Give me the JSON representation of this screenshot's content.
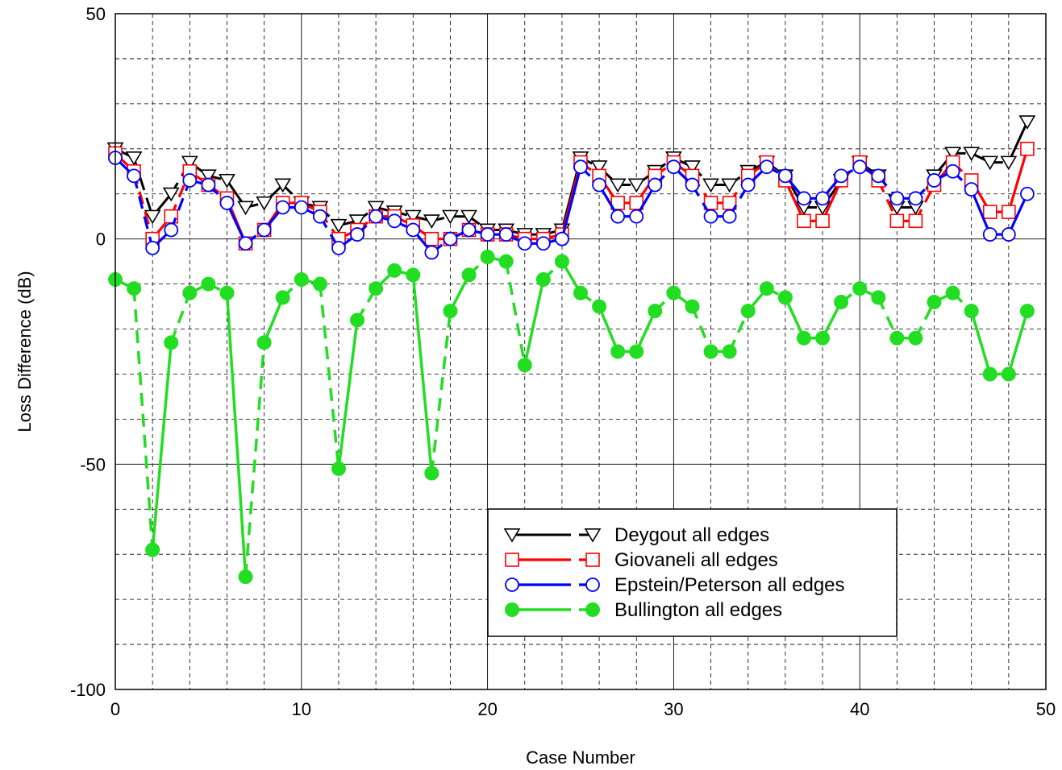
{
  "chart_data": {
    "type": "line",
    "title": "",
    "xlabel": "Case Number",
    "ylabel": "Loss Difference  (dB)",
    "xlim": [
      0,
      50
    ],
    "ylim": [
      -100,
      50
    ],
    "xticks": [
      0,
      10,
      20,
      30,
      40,
      50
    ],
    "yticks": [
      -100,
      -50,
      0,
      50
    ],
    "grid": true,
    "legend_position": "lower-right",
    "series": [
      {
        "name": "Deygout all edges",
        "color": "#000000",
        "marker": "triangle-down-open",
        "x": [
          0,
          1,
          2,
          3,
          4,
          5,
          6,
          7,
          8,
          9,
          10,
          11,
          12,
          13,
          14,
          15,
          16,
          17,
          18,
          19,
          20,
          21,
          22,
          23,
          24,
          25,
          26,
          27,
          28,
          29,
          30,
          31,
          32,
          33,
          34,
          35,
          36,
          37,
          38,
          39,
          40,
          41,
          42,
          43,
          44,
          45,
          46,
          47,
          48,
          49
        ],
        "values": [
          20,
          18,
          5,
          10,
          17,
          14,
          13,
          7,
          8,
          12,
          8,
          7,
          3,
          4,
          7,
          6,
          5,
          4,
          5,
          5,
          2,
          2,
          1,
          1,
          2,
          18,
          16,
          12,
          12,
          15,
          18,
          16,
          12,
          12,
          15,
          17,
          14,
          7,
          7,
          13,
          17,
          14,
          7,
          7,
          14,
          19,
          19,
          17,
          17,
          26
        ]
      },
      {
        "name": "Giovaneli all edges",
        "color": "#ff0000",
        "marker": "square-open",
        "x": [
          0,
          1,
          2,
          3,
          4,
          5,
          6,
          7,
          8,
          9,
          10,
          11,
          12,
          13,
          14,
          15,
          16,
          17,
          18,
          19,
          20,
          21,
          22,
          23,
          24,
          25,
          26,
          27,
          28,
          29,
          30,
          31,
          32,
          33,
          34,
          35,
          36,
          37,
          38,
          39,
          40,
          41,
          42,
          43,
          44,
          45,
          46,
          47,
          48,
          49
        ],
        "values": [
          19,
          15,
          0,
          5,
          15,
          12,
          9,
          -1,
          2,
          8,
          8,
          6,
          0,
          2,
          5,
          5,
          3,
          0,
          0,
          2,
          1,
          1,
          0,
          0,
          1,
          17,
          14,
          8,
          8,
          14,
          17,
          14,
          8,
          8,
          14,
          17,
          13,
          4,
          4,
          13,
          17,
          13,
          4,
          4,
          12,
          17,
          13,
          6,
          6,
          20
        ]
      },
      {
        "name": "Epstein/Peterson all edges",
        "color": "#0000ff",
        "marker": "circle-open",
        "x": [
          0,
          1,
          2,
          3,
          4,
          5,
          6,
          7,
          8,
          9,
          10,
          11,
          12,
          13,
          14,
          15,
          16,
          17,
          18,
          19,
          20,
          21,
          22,
          23,
          24,
          25,
          26,
          27,
          28,
          29,
          30,
          31,
          32,
          33,
          34,
          35,
          36,
          37,
          38,
          39,
          40,
          41,
          42,
          43,
          44,
          45,
          46,
          47,
          48,
          49
        ],
        "values": [
          18,
          14,
          -2,
          2,
          13,
          12,
          8,
          -1,
          2,
          7,
          7,
          5,
          -2,
          1,
          5,
          4,
          2,
          -3,
          0,
          2,
          1,
          1,
          -1,
          -1,
          0,
          16,
          12,
          5,
          5,
          12,
          16,
          12,
          5,
          5,
          12,
          16,
          14,
          9,
          9,
          14,
          16,
          14,
          9,
          9,
          13,
          15,
          11,
          1,
          1,
          10
        ]
      },
      {
        "name": "Bullington all edges",
        "color": "#22dd22",
        "marker": "circle-filled",
        "x": [
          0,
          1,
          2,
          3,
          4,
          5,
          6,
          7,
          8,
          9,
          10,
          11,
          12,
          13,
          14,
          15,
          16,
          17,
          18,
          19,
          20,
          21,
          22,
          23,
          24,
          25,
          26,
          27,
          28,
          29,
          30,
          31,
          32,
          33,
          34,
          35,
          36,
          37,
          38,
          39,
          40,
          41,
          42,
          43,
          44,
          45,
          46,
          47,
          48,
          49
        ],
        "values": [
          -9,
          -11,
          -69,
          -23,
          -12,
          -10,
          -12,
          -75,
          -23,
          -13,
          -9,
          -10,
          -51,
          -18,
          -11,
          -7,
          -8,
          -52,
          -16,
          -8,
          -4,
          -5,
          -28,
          -9,
          -5,
          -12,
          -15,
          -25,
          -25,
          -16,
          -12,
          -15,
          -25,
          -25,
          -16,
          -11,
          -13,
          -22,
          -22,
          -14,
          -11,
          -13,
          -22,
          -22,
          -14,
          -12,
          -16,
          -30,
          -30,
          -16
        ]
      }
    ]
  }
}
